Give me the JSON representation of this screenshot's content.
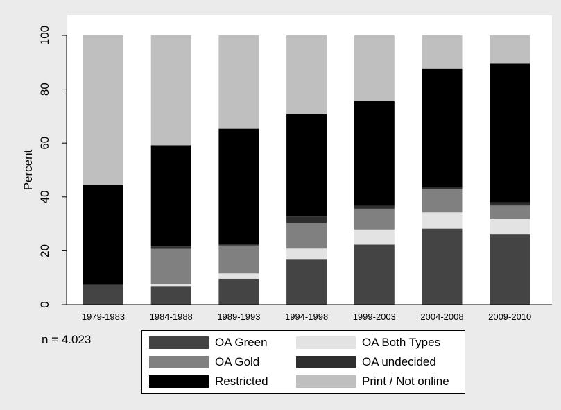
{
  "chart_data": {
    "type": "bar",
    "stacked": true,
    "categories": [
      "1979-1983",
      "1984-1988",
      "1989-1993",
      "1994-1998",
      "1999-2003",
      "2004-2008",
      "2009-2010"
    ],
    "series": [
      {
        "name": "OA Green",
        "color": "#444444",
        "values": [
          7.3,
          6.9,
          9.6,
          16.7,
          22.3,
          28.2,
          26.0
        ]
      },
      {
        "name": "OA Both Types",
        "color": "#e3e3e3",
        "values": [
          0.0,
          0.6,
          1.9,
          4.1,
          5.6,
          6.0,
          5.7
        ]
      },
      {
        "name": "OA Gold",
        "color": "#808080",
        "values": [
          0.0,
          13.2,
          10.5,
          9.5,
          7.7,
          8.6,
          5.1
        ]
      },
      {
        "name": "OA undecided",
        "color": "#2e2e2e",
        "values": [
          0.0,
          0.9,
          0.3,
          2.4,
          1.1,
          1.0,
          1.2
        ]
      },
      {
        "name": "Restricted",
        "color": "#000000",
        "values": [
          37.3,
          37.6,
          43.0,
          38.0,
          38.9,
          43.9,
          51.6
        ]
      },
      {
        "name": "Print / Not online",
        "color": "#bfbfbf",
        "values": [
          55.4,
          40.8,
          34.7,
          29.3,
          24.4,
          12.3,
          10.4
        ]
      }
    ],
    "ylabel": "Percent",
    "xlabel": "",
    "ylim": [
      0,
      100
    ],
    "yticks": [
      0,
      20,
      40,
      60,
      80,
      100
    ],
    "grid": false,
    "legend_position": "bottom",
    "note": "n = 4.023"
  }
}
